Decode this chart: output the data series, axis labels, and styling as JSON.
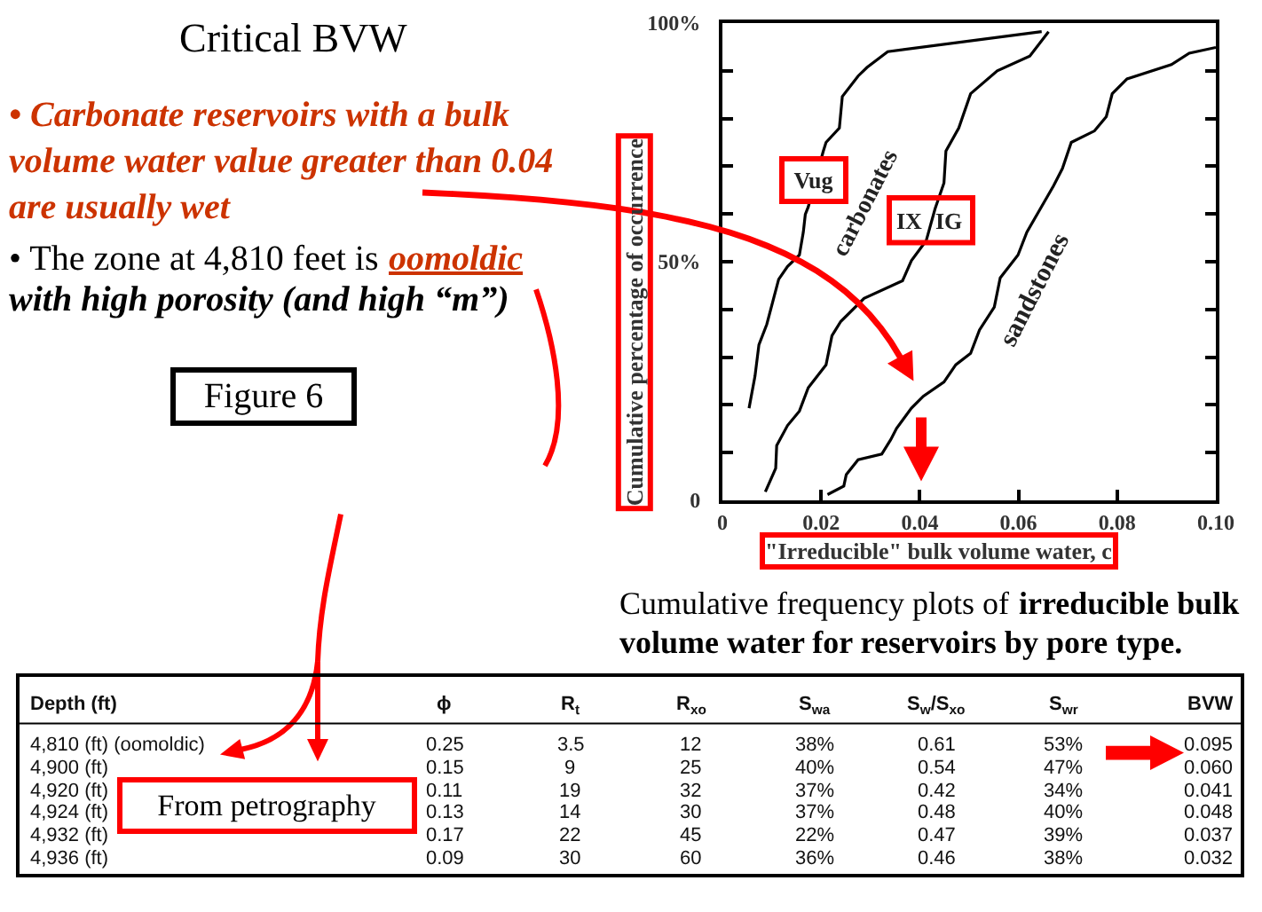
{
  "chart_data": [
    {
      "type": "other",
      "title": "Critical BVW",
      "annotations": [
        "• Carbonate reservoirs with a bulk volume water value greater than 0.04 are usually wet",
        "• The zone at 4,810 feet is",
        "oomoldic",
        "with high porosity (and high “m”)",
        "Figure 6"
      ]
    },
    {
      "type": "line",
      "xlabel": "\"Irreducible\" bulk volume water, c",
      "ylabel": "Cumulative percentage of occurrence",
      "xlim": [
        0,
        0.1
      ],
      "ylim": [
        0,
        100
      ],
      "xticks": [
        0,
        0.02,
        0.04,
        0.06,
        0.08,
        {
          "value": 0.1,
          "label": "0.10"
        }
      ],
      "yticks": [
        0,
        {
          "value": 10,
          "label": null
        },
        {
          "value": 20,
          "label": null
        },
        {
          "value": 30,
          "label": null
        },
        {
          "value": 40,
          "label": null
        },
        {
          "value": 50,
          "label": "50%"
        },
        {
          "value": 60,
          "label": null
        },
        {
          "value": 70,
          "label": null
        },
        {
          "value": 80,
          "label": null
        },
        {
          "value": 90,
          "label": null
        },
        {
          "value": 100,
          "label": "100%"
        }
      ],
      "series": [
        {
          "color": "#000000",
          "x": [
            0.0054,
            0.0066,
            0.0074,
            0.009,
            0.0114,
            0.0132,
            0.0156,
            0.0164,
            0.0168,
            0.0174,
            0.0204,
            0.021,
            0.0237,
            0.0243,
            0.0275,
            0.0293,
            0.0335,
            0.0647
          ],
          "values": [
            19.3,
            26,
            32.6,
            36.9,
            46.3,
            49,
            51.4,
            56.2,
            59.9,
            61.5,
            73,
            75,
            78,
            84.6,
            88.9,
            90.7,
            94,
            98.2
          ]
        },
        {
          "color": "#000000",
          "x": [
            0.0087,
            0.0108,
            0.011,
            0.0132,
            0.0156,
            0.0174,
            0.021,
            0.0222,
            0.024,
            0.0287,
            0.0365,
            0.0383,
            0.0413,
            0.0431,
            0.0449,
            0.0453,
            0.0479,
            0.0503,
            0.0557,
            0.0623,
            0.0661
          ],
          "values": [
            1.8,
            6.7,
            11.5,
            15.7,
            18.7,
            23.6,
            28.4,
            34.5,
            37.5,
            42.3,
            46,
            50.2,
            54.4,
            61.1,
            66.5,
            73.2,
            78,
            85.2,
            90,
            93.1,
            98.2
          ]
        },
        {
          "color": "#000000",
          "x": [
            0.0213,
            0.0246,
            0.0251,
            0.0275,
            0.0323,
            0.0341,
            0.0353,
            0.0383,
            0.0407,
            0.0449,
            0.0473,
            0.0503,
            0.0521,
            0.0551,
            0.0563,
            0.0599,
            0.0617,
            0.0641,
            0.0671,
            0.0689,
            0.0707,
            0.0754,
            0.0778,
            0.079,
            0.082,
            0.091,
            0.0946,
            0.1
          ],
          "values": [
            1.2,
            3,
            5.4,
            8.5,
            9.7,
            12.7,
            15.1,
            19.3,
            21.8,
            24.8,
            28.4,
            30.8,
            35.7,
            40.5,
            46.6,
            51.4,
            56.2,
            60.5,
            65.9,
            69.5,
            75,
            77.4,
            80.4,
            85.2,
            88.3,
            91.3,
            93.7,
            94.9
          ]
        }
      ],
      "annotations": [
        {
          "text": "Vug",
          "x": 0.0185,
          "y": 67
        },
        "carbonates",
        "IX",
        "IG",
        "sandstones",
        "Cumulative frequency plots of",
        "irreducible bulk",
        "volume water for reservoirs by pore type."
      ]
    },
    {
      "type": "other",
      "ylabel": "Depth (ft)",
      "categories": [
        "ϕ",
        "R$_{t}$",
        "R$_{xo}$",
        "S$_{wa}$",
        "S$_{w}$/S$_{xo}$",
        "S$_{wr}$",
        "BVW"
      ],
      "y_categories": [
        "4,810 (ft) (oomoldic)",
        "4,900 (ft)",
        "4,920 (ft)",
        "4,924 (ft)",
        "4,932 (ft)",
        "4,936 (ft)"
      ],
      "cell_labels": [
        [
          "0.25",
          "3.5",
          "12",
          "38%",
          "0.61",
          "53%",
          "0.095"
        ],
        [
          "0.15",
          "9",
          "25",
          "40%",
          "0.54",
          "47%",
          "0.060"
        ],
        [
          "0.11",
          "19",
          "32",
          "37%",
          "0.42",
          "34%",
          "0.041"
        ],
        [
          "0.13",
          "14",
          "30",
          "37%",
          "0.48",
          "40%",
          "0.048"
        ],
        [
          "0.17",
          "22",
          "45",
          "22%",
          "0.47",
          "39%",
          "0.037"
        ],
        [
          "0.09",
          "30",
          "60",
          "36%",
          "0.46",
          "38%",
          "0.032"
        ]
      ],
      "annotations": [
        "From petrography"
      ]
    }
  ]
}
